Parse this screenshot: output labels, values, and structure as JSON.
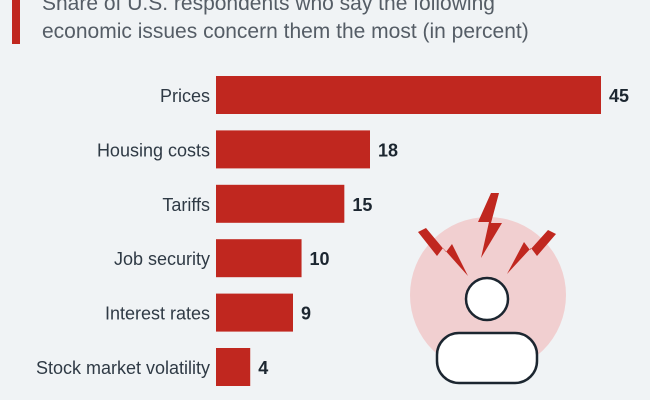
{
  "title_lines": [
    "Share of U.S. respondents who say the following",
    "economic issues concern them the most (in percent)"
  ],
  "colors": {
    "bar": "#c0271f",
    "background": "#f0f3f5",
    "label_text": "#2f3a45",
    "value_text": "#1c2630",
    "illustration_circle": "#f1cfd0",
    "illustration_person": "#ffffff",
    "illustration_bolt": "#c0271f"
  },
  "illustration": {
    "icon": "stressed-person-icon"
  },
  "chart_data": {
    "type": "bar",
    "orientation": "horizontal",
    "title": "Share of U.S. respondents who say the following economic issues concern them the most (in percent)",
    "categories": [
      "Prices",
      "Housing costs",
      "Tariffs",
      "Job security",
      "Interest rates",
      "Stock market volatility"
    ],
    "values": [
      45,
      18,
      15,
      10,
      9,
      4
    ],
    "unit": "percent",
    "xlim": [
      0,
      45
    ],
    "grid": false,
    "legend": "none",
    "data_labels": true
  }
}
